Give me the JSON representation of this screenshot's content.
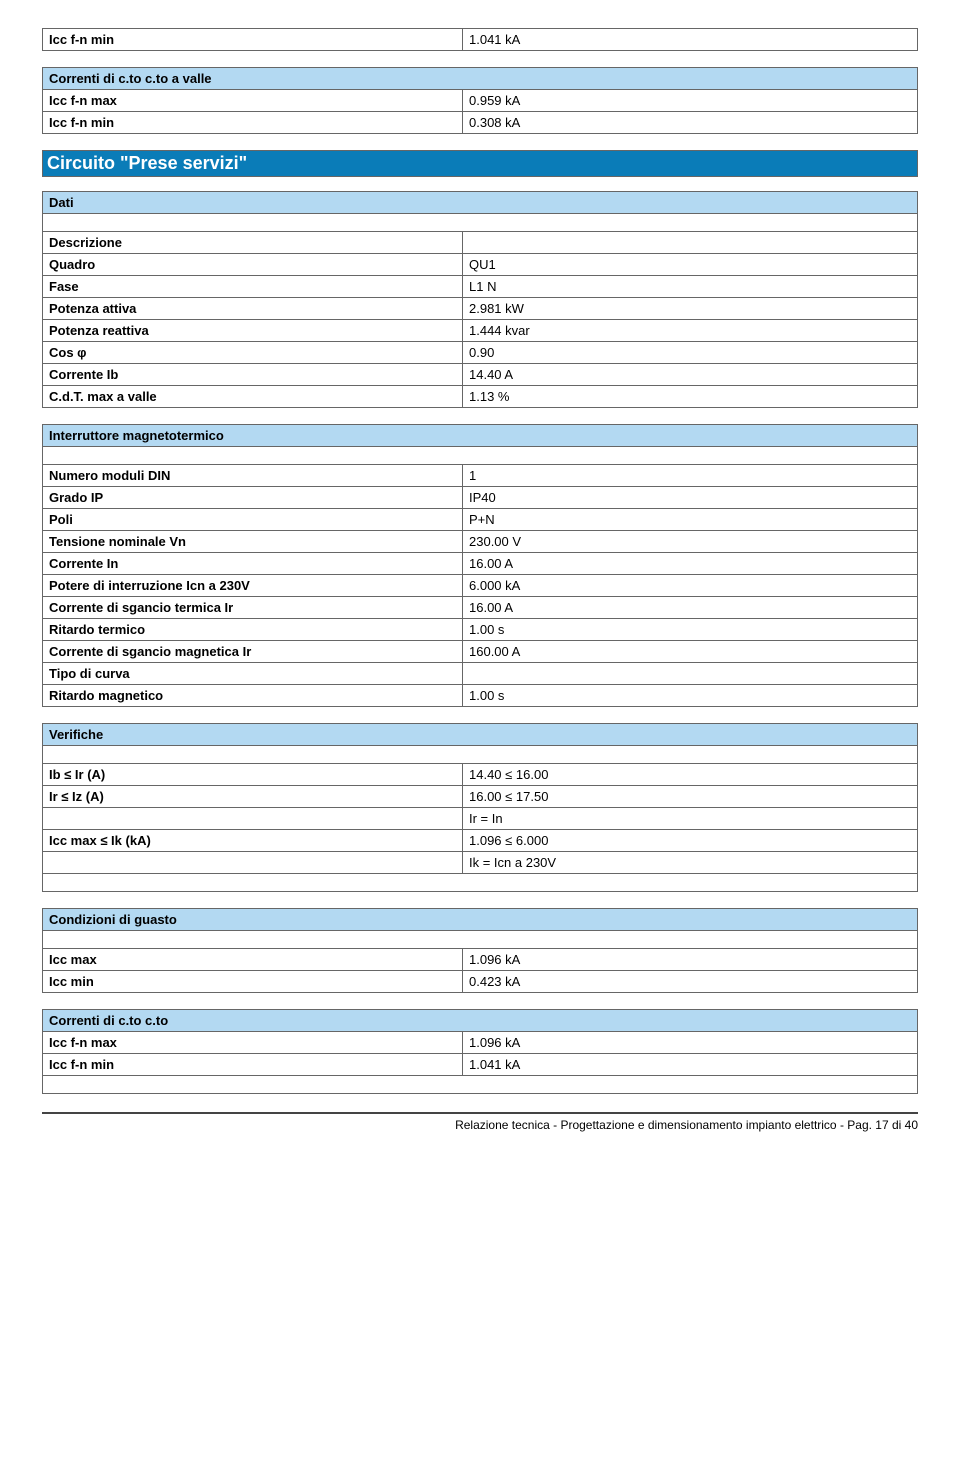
{
  "top": {
    "r1_label": "Icc f-n min",
    "r1_val": "1.041 kA"
  },
  "ctovalle": {
    "header": "Correnti di c.to c.to a valle",
    "r1_label": "Icc f-n max",
    "r1_val": "0.959 kA",
    "r2_label": "Icc f-n min",
    "r2_val": "0.308 kA"
  },
  "circuit_title": "Circuito \"Prese servizi\"",
  "dati": {
    "header": "Dati",
    "r1_label": "Descrizione",
    "r1_val": "",
    "r2_label": "Quadro",
    "r2_val": "QU1",
    "r3_label": "Fase",
    "r3_val": "L1 N",
    "r4_label": "Potenza attiva",
    "r4_val": "2.981 kW",
    "r5_label": "Potenza reattiva",
    "r5_val": "1.444 kvar",
    "r6_label": "Cos φ",
    "r6_val": "0.90",
    "r7_label": "Corrente Ib",
    "r7_val": "14.40 A",
    "r8_label": "C.d.T. max a valle",
    "r8_val": "1.13 %"
  },
  "interr": {
    "header": "Interruttore magnetotermico",
    "r1_label": "Numero moduli DIN",
    "r1_val": "1",
    "r2_label": "Grado IP",
    "r2_val": "IP40",
    "r3_label": "Poli",
    "r3_val": "P+N",
    "r4_label": "Tensione nominale Vn",
    "r4_val": "230.00 V",
    "r5_label": "Corrente In",
    "r5_val": "16.00 A",
    "r6_label": "Potere di interruzione Icn a 230V",
    "r6_val": "6.000 kA",
    "r7_label": "Corrente di sgancio termica Ir",
    "r7_val": "16.00 A",
    "r8_label": "Ritardo termico",
    "r8_val": "1.00 s",
    "r9_label": "Corrente di sgancio magnetica Ir",
    "r9_val": "160.00 A",
    "r10_label": "Tipo di curva",
    "r10_val": "",
    "r11_label": "Ritardo magnetico",
    "r11_val": "1.00 s"
  },
  "verif": {
    "header": "Verifiche",
    "r1_label": "Ib ≤ Ir (A)",
    "r1_val": "14.40 ≤ 16.00",
    "r2_label": "Ir ≤ Iz (A)",
    "r2_val": "16.00 ≤ 17.50",
    "r3_label": "",
    "r3_val": "Ir = In",
    "r4_label": "Icc max ≤ Ik (kA)",
    "r4_val": "1.096 ≤ 6.000",
    "r5_label": "",
    "r5_val": "Ik = Icn a 230V"
  },
  "guasto": {
    "header": "Condizioni di guasto",
    "r1_label": "Icc max",
    "r1_val": "1.096 kA",
    "r2_label": "Icc min",
    "r2_val": "0.423 kA"
  },
  "cto": {
    "header": "Correnti di c.to c.to",
    "r1_label": "Icc f-n max",
    "r1_val": "1.096 kA",
    "r2_label": "Icc f-n min",
    "r2_val": "1.041 kA"
  },
  "footer": "Relazione tecnica - Progettazione e dimensionamento impianto elettrico - Pag. 17 di 40"
}
